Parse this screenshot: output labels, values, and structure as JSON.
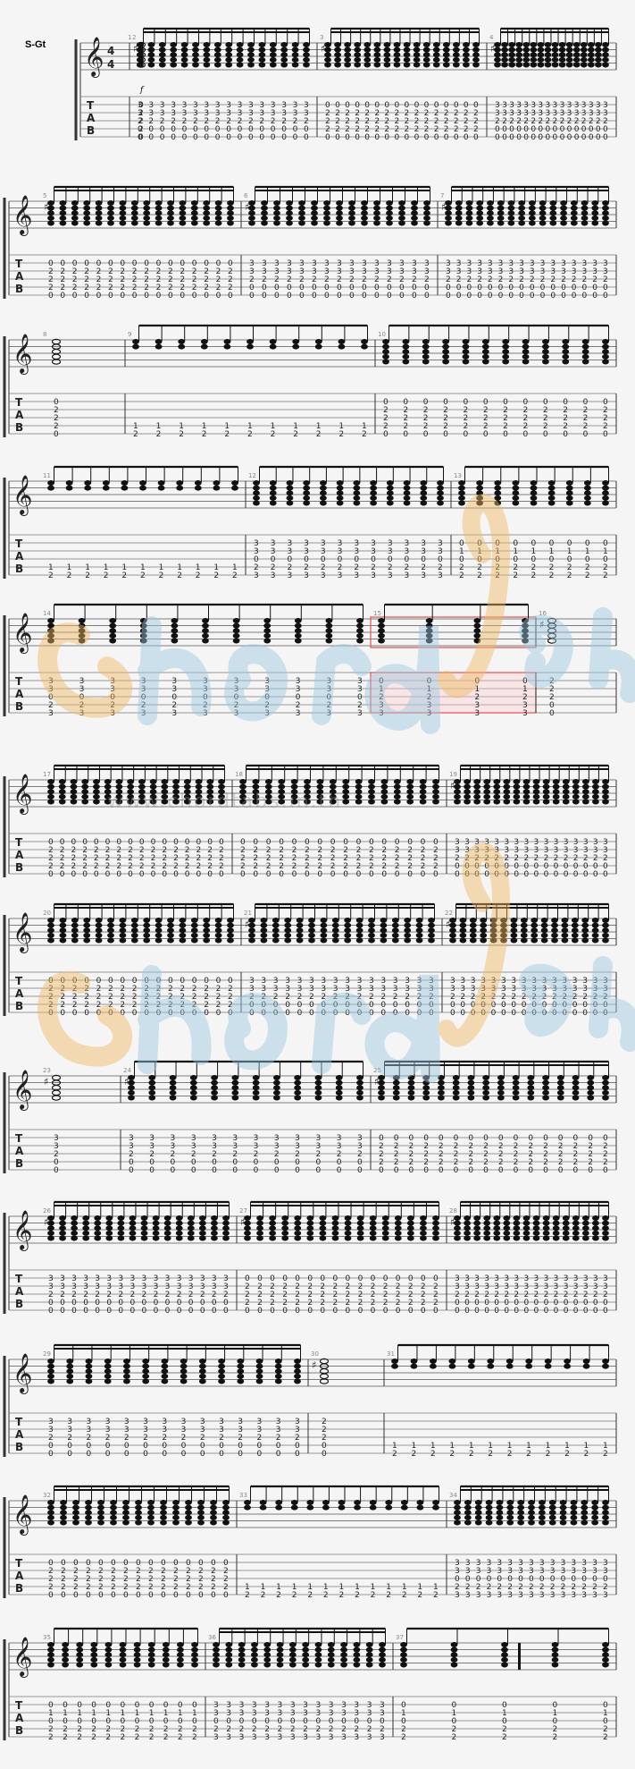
{
  "score": {
    "instrument_label": "S-Gt",
    "time_signature": {
      "top": "4",
      "bottom": "4"
    },
    "tab_letters": [
      "T",
      "A",
      "B"
    ],
    "dynamic": "f"
  },
  "systems": [
    {
      "measures": [
        "1",
        "2",
        "3",
        "4"
      ]
    },
    {
      "measures": [
        "5",
        "6",
        "7"
      ]
    },
    {
      "measures": [
        "8",
        "9",
        "10"
      ]
    },
    {
      "measures": [
        "11",
        "12",
        "13"
      ]
    },
    {
      "measures": [
        "14",
        "15",
        "16"
      ]
    },
    {
      "measures": [
        "17",
        "18",
        "19"
      ]
    },
    {
      "measures": [
        "20",
        "21",
        "22"
      ]
    },
    {
      "measures": [
        "23",
        "24",
        "25"
      ]
    },
    {
      "measures": [
        "26",
        "27",
        "28"
      ]
    },
    {
      "measures": [
        "29",
        "30",
        "31"
      ]
    },
    {
      "measures": [
        "32",
        "33",
        "34"
      ]
    },
    {
      "measures": [
        "35",
        "36",
        "37"
      ]
    }
  ],
  "tab_columns": {
    "A": [
      "0",
      "2",
      "2",
      "2",
      "0"
    ],
    "B": [
      "3",
      "3",
      "2",
      "0",
      "0"
    ],
    "C": [
      "2",
      "2",
      "2",
      "0",
      "0"
    ],
    "D": [
      "1",
      "2",
      "2",
      "2",
      "0"
    ],
    "E": [
      "0",
      "1",
      "2",
      "3",
      "3"
    ],
    "F": [
      "3",
      "3",
      "0",
      "2",
      "3"
    ],
    "G": [
      "1",
      "2"
    ],
    "H": [
      "0",
      "1",
      "0",
      "2",
      "2"
    ]
  },
  "highlight": {
    "measure": "15",
    "color": "#e05050"
  },
  "watermark": {
    "text": "chord tabs",
    "url": "www.chordtabs.in.th"
  }
}
